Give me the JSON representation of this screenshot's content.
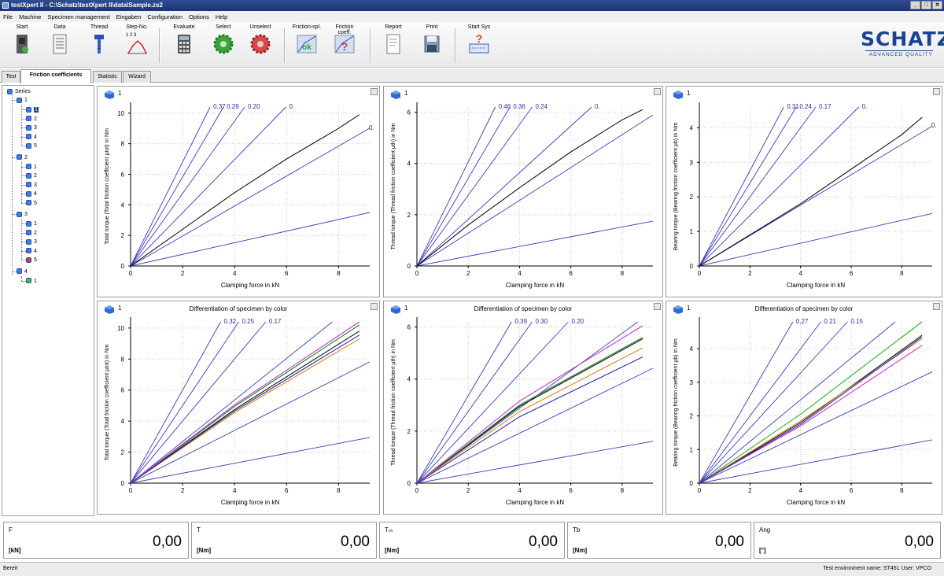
{
  "window": {
    "title": "testXpert II  -  C:\\Schatz\\testXpert II\\data\\Sample.zs2",
    "min": "_",
    "max": "□",
    "close": "✕"
  },
  "menu": [
    "File",
    "Machine",
    "Specimen management",
    "Eingaben",
    "Configuration",
    "Options",
    "Help"
  ],
  "toolbar": {
    "start": "Start",
    "data": "Data",
    "thread": "Thread",
    "step": "Step-No.",
    "step_digits": "1  2  3",
    "evaluate": "Evaluate",
    "select": "Select",
    "unselect": "Unselect",
    "friction_spl": "Friction-spl.",
    "friction_coeff": "Friction coeff.",
    "report": "Report",
    "print": "Print",
    "start_sys": "Start Sys",
    "ok": "ok",
    "question": "?"
  },
  "logo": {
    "name": "SCHATZ",
    "tagline": "ADVANCED QUALITY"
  },
  "tabs": [
    "Test",
    "Friction coefficients",
    "Statistic",
    "Wizard"
  ],
  "tree": {
    "root": "Series",
    "groups": [
      {
        "label": "1",
        "items": [
          "1",
          "2",
          "3",
          "4",
          "5"
        ]
      },
      {
        "label": "2",
        "items": [
          "1",
          "2",
          "3",
          "4",
          "5"
        ]
      },
      {
        "label": "3",
        "items": [
          "1",
          "2",
          "3",
          "4",
          "5"
        ]
      },
      {
        "label": "4",
        "items": [
          "1"
        ]
      }
    ]
  },
  "colors": {
    "ref_line": "#3a3ab8",
    "curve": "#111111",
    "grid": "#c8c8c8",
    "brand": "#1c4391"
  },
  "xlabel": "Clamping force in kN",
  "panel_number": "1",
  "chart_data": [
    {
      "type": "line",
      "title": "",
      "ylabel": "Total torque (Total friction coefficient µtot) in Nm",
      "xlabel": "Clamping force in kN",
      "xlim": [
        0,
        9.2
      ],
      "ylim": [
        0,
        10.4
      ],
      "xticks": [
        0,
        2,
        4,
        6,
        8
      ],
      "yticks": [
        0,
        2,
        4,
        6,
        8,
        10
      ],
      "ref_labels": [
        "0.37",
        "0.29",
        "0.20",
        "0.",
        "0."
      ],
      "ref_slopes": [
        3.4,
        2.91,
        2.37,
        1.74,
        0.98,
        0.38
      ],
      "series": [
        {
          "color": "#111111",
          "x": [
            0,
            2,
            4,
            6,
            8,
            8.8
          ],
          "y": [
            0,
            2.4,
            4.8,
            7.0,
            9.0,
            9.9
          ]
        }
      ]
    },
    {
      "type": "line",
      "title": "",
      "ylabel": "Thread torque (Thread friction coefficient µth) in Nm",
      "xlabel": "Clamping force in kN",
      "xlim": [
        0,
        9.2
      ],
      "ylim": [
        0,
        6.2
      ],
      "xticks": [
        0,
        2,
        4,
        6,
        8
      ],
      "yticks": [
        0,
        2,
        4,
        6
      ],
      "ref_labels": [
        "0.46",
        "0.36",
        "0.24",
        "0."
      ],
      "ref_slopes": [
        2.03,
        1.71,
        1.38,
        0.91,
        0.64,
        0.19
      ],
      "series": [
        {
          "color": "#111111",
          "x": [
            0,
            2,
            4,
            6,
            8,
            8.8
          ],
          "y": [
            0,
            1.6,
            3.05,
            4.45,
            5.7,
            6.1
          ]
        }
      ]
    },
    {
      "type": "line",
      "title": "",
      "ylabel": "Bearing torque (Bearing friction coefficient µb) in Nm",
      "xlabel": "Clamping force in kN",
      "xlim": [
        0,
        9.2
      ],
      "ylim": [
        0,
        4.6
      ],
      "xticks": [
        0,
        2,
        4,
        6,
        8
      ],
      "yticks": [
        0,
        1,
        2,
        3,
        4
      ],
      "ref_labels": [
        "0.31",
        "0.24",
        "0.17",
        "0.",
        "0."
      ],
      "ref_slopes": [
        1.38,
        1.2,
        1.0,
        0.73,
        0.44,
        0.165
      ],
      "series": [
        {
          "color": "#111111",
          "x": [
            0,
            2,
            4,
            6,
            8,
            8.8
          ],
          "y": [
            0,
            0.9,
            1.8,
            2.8,
            3.8,
            4.3
          ]
        }
      ]
    },
    {
      "type": "line",
      "title": "Differentiation of specimen by color",
      "ylabel": "Total torque (Total friction coefficient µtot) in Nm",
      "xlabel": "Clamping force in kN",
      "xlim": [
        0,
        9.2
      ],
      "ylim": [
        0,
        10.4
      ],
      "xticks": [
        0,
        2,
        4,
        6,
        8
      ],
      "yticks": [
        0,
        2,
        4,
        6,
        8,
        10
      ],
      "ref_labels": [
        "0.32",
        "0.25",
        "0.17"
      ],
      "ref_slopes": [
        3.0,
        2.5,
        2.0,
        1.34,
        0.85,
        0.32
      ],
      "series": [
        {
          "color": "#111111",
          "x": [
            0,
            4,
            8.8
          ],
          "y": [
            0,
            4.75,
            9.8
          ]
        },
        {
          "color": "#1a7a1a",
          "x": [
            0,
            4,
            8.8
          ],
          "y": [
            0,
            4.95,
            10.2
          ]
        },
        {
          "color": "#c23ad0",
          "x": [
            0,
            4,
            8.8
          ],
          "y": [
            0,
            5.05,
            10.4
          ]
        },
        {
          "color": "#d88a1c",
          "x": [
            0,
            4,
            8.8
          ],
          "y": [
            0,
            4.55,
            9.3
          ]
        },
        {
          "color": "#2c2ca8",
          "x": [
            0,
            4,
            8.8
          ],
          "y": [
            0,
            4.65,
            9.55
          ]
        }
      ]
    },
    {
      "type": "line",
      "title": "Differentiation of specimen by color",
      "ylabel": "Thread torque (Thread friction coefficient µth) in Nm",
      "xlabel": "Clamping force in kN",
      "xlim": [
        0,
        9.2
      ],
      "ylim": [
        0,
        6.2
      ],
      "xticks": [
        0,
        2,
        4,
        6,
        8
      ],
      "yticks": [
        0,
        2,
        4,
        6
      ],
      "ref_labels": [
        "0.39",
        "0.30",
        "0.20"
      ],
      "ref_slopes": [
        1.68,
        1.38,
        1.05,
        0.72,
        0.48,
        0.175
      ],
      "series": [
        {
          "color": "#111111",
          "x": [
            0,
            4,
            8.8
          ],
          "y": [
            0,
            2.95,
            5.55
          ]
        },
        {
          "color": "#1a7a1a",
          "x": [
            0,
            4,
            8.8
          ],
          "y": [
            0,
            3.0,
            5.6
          ]
        },
        {
          "color": "#c23ad0",
          "x": [
            0,
            4,
            8.8
          ],
          "y": [
            0,
            3.15,
            6.05
          ]
        },
        {
          "color": "#d88a1c",
          "x": [
            0,
            4,
            8.8
          ],
          "y": [
            0,
            2.75,
            5.2
          ]
        },
        {
          "color": "#2c2ca8",
          "x": [
            0,
            4,
            8.8
          ],
          "y": [
            0,
            2.55,
            4.85
          ]
        }
      ]
    },
    {
      "type": "line",
      "title": "Differentiation of specimen by color",
      "ylabel": "Bearing torque (Bearing friction coefficient µb) in Nm",
      "xlabel": "Clamping force in kN",
      "xlim": [
        0,
        9.2
      ],
      "ylim": [
        0,
        4.8
      ],
      "xticks": [
        0,
        2,
        4,
        6,
        8
      ],
      "yticks": [
        0,
        1,
        2,
        3,
        4
      ],
      "ref_labels": [
        "0.27",
        "0.21",
        "0.15"
      ],
      "ref_slopes": [
        1.3,
        1.0,
        0.82,
        0.62,
        0.36,
        0.14
      ],
      "series": [
        {
          "color": "#111111",
          "x": [
            0,
            4,
            8.8
          ],
          "y": [
            0,
            1.8,
            4.4
          ]
        },
        {
          "color": "#2ab02a",
          "x": [
            0,
            4,
            8.8
          ],
          "y": [
            0,
            2.05,
            4.8
          ]
        },
        {
          "color": "#c23ad0",
          "x": [
            0,
            4,
            8.8
          ],
          "y": [
            0,
            1.7,
            4.1
          ]
        },
        {
          "color": "#d88a1c",
          "x": [
            0,
            4,
            8.8
          ],
          "y": [
            0,
            1.85,
            4.3
          ]
        },
        {
          "color": "#2c2ca8",
          "x": [
            0,
            4,
            8.8
          ],
          "y": [
            0,
            1.75,
            4.35
          ]
        }
      ]
    }
  ],
  "values": [
    {
      "label": "F",
      "unit": "[kN]",
      "value": "0,00"
    },
    {
      "label": "T",
      "unit": "[Nm]",
      "value": "0,00"
    },
    {
      "label": "Tₜₕ",
      "unit": "[Nm]",
      "value": "0,00"
    },
    {
      "label": "Tb",
      "unit": "[Nm]",
      "value": "0,00"
    },
    {
      "label": "Ang",
      "unit": "[°]",
      "value": "0,00"
    }
  ],
  "status": {
    "left": "Bereit",
    "right": "Test environment name: ST451   User: VPCO"
  }
}
